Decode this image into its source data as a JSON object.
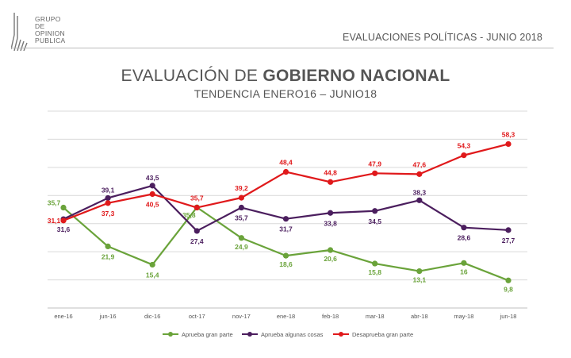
{
  "logo": {
    "lines": [
      "GRUPO",
      "DE",
      "OPINION",
      "PUBLICA"
    ]
  },
  "header": {
    "right_text": "EVALUACIONES POLÍTICAS - JUNIO 2018"
  },
  "title": {
    "prefix": "EVALUACIÓN DE ",
    "bold": "GOBIERNO NACIONAL"
  },
  "subtitle": "TENDENCIA ENERO16 – JUNIO18",
  "colors": {
    "green": "#6aa33a",
    "purple": "#4b1e5e",
    "red": "#e0191b",
    "grid": "#d9d9d9"
  },
  "chart_data": {
    "type": "line",
    "categories": [
      "ene-16",
      "jun-16",
      "dic-16",
      "oct-17",
      "nov-17",
      "ene-18",
      "feb-18",
      "mar-18",
      "abr-18",
      "may-18",
      "jun-18"
    ],
    "ylim": [
      0,
      70
    ],
    "grid": true,
    "legend_position": "bottom",
    "series": [
      {
        "name": "Aprueba gran parte",
        "color": "#6aa33a",
        "values": [
          35.7,
          21.9,
          15.4,
          35.8,
          24.9,
          18.6,
          20.6,
          15.8,
          13.1,
          16,
          9.8
        ],
        "labels": [
          "35,7",
          "21,9",
          "15,4",
          "35,8",
          "24,9",
          "18,6",
          "20,6",
          "15,8",
          "13,1",
          "16",
          "9,8"
        ]
      },
      {
        "name": "Aprueba algunas cosas",
        "color": "#4b1e5e",
        "values": [
          31.6,
          39.1,
          43.5,
          27.4,
          35.7,
          31.7,
          33.8,
          34.5,
          38.3,
          28.6,
          27.7
        ],
        "labels": [
          "31,6",
          "39,1",
          "43,5",
          "27,4",
          "35,7",
          "31,7",
          "33,8",
          "34,5",
          "38,3",
          "28,6",
          "27,7"
        ]
      },
      {
        "name": "Desaprueba gran parte",
        "color": "#e0191b",
        "values": [
          31.1,
          37.3,
          40.5,
          35.7,
          39.2,
          48.4,
          44.8,
          47.9,
          47.6,
          54.3,
          58.3
        ],
        "labels": [
          "31,1",
          "37,3",
          "40,5",
          "35,7",
          "39,2",
          "48,4",
          "44,8",
          "47,9",
          "47,6",
          "54,3",
          "58,3"
        ]
      }
    ]
  }
}
